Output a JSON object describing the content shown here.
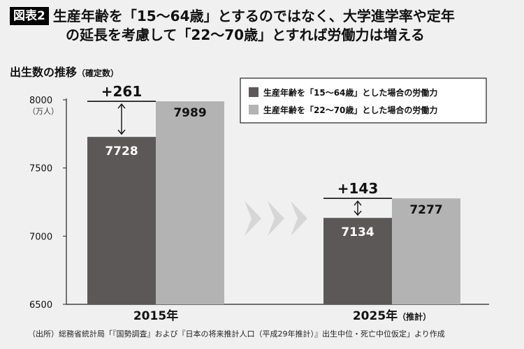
{
  "header": {
    "badge": "図表2",
    "title_line1": "生産年齢を「15〜64歳」とするのではなく、大学進学率や定年",
    "title_line2": "の延長を考慮して「22〜70歳」とすれば労働力は増える"
  },
  "subtitle": {
    "main": "出生数の推移",
    "note": "（確定数）"
  },
  "source": "（出所）総務省統計局「『国勢調査』および『日本の将来推計人口（平成29年推計）』出生中位・死亡中位仮定」より作成",
  "colors": {
    "series1": "#5c5858",
    "series2": "#b3b3b3",
    "background": "#f0f0f0"
  },
  "chart_data": {
    "type": "bar",
    "categories": [
      "2015年",
      "2025年"
    ],
    "category_suffixes": [
      "",
      "（推計）"
    ],
    "series": [
      {
        "name": "生産年齢を「15〜64歳」とした場合の労働力",
        "values": [
          7728,
          7134
        ]
      },
      {
        "name": "生産年齢を「22〜70歳」とした場合の労働力",
        "values": [
          7989,
          7277
        ]
      }
    ],
    "differences": [
      "+261",
      "+143"
    ],
    "ylim": [
      6500,
      8000
    ],
    "yticks": [
      6500,
      7000,
      7500,
      8000
    ],
    "yunit": "（万人）",
    "legend_position": "top-right",
    "grid": false
  }
}
